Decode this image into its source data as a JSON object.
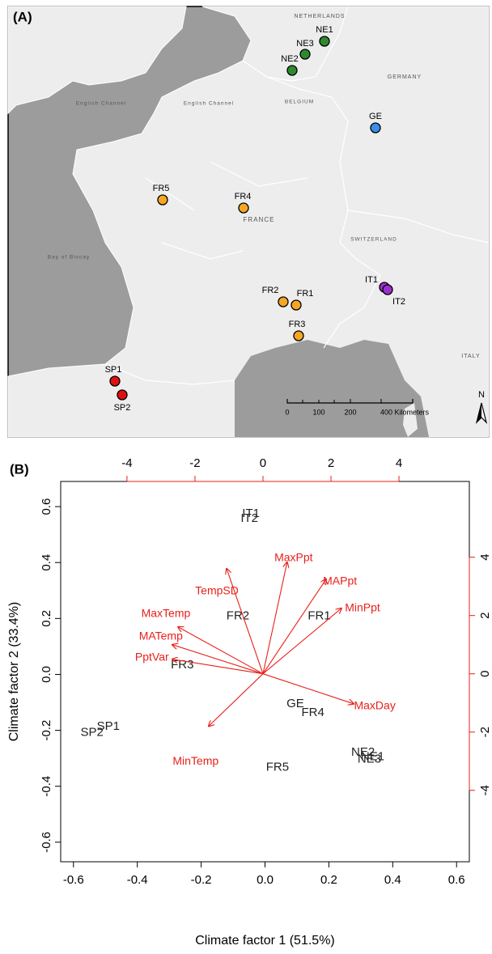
{
  "panel_a": {
    "label": "(A)",
    "sites": [
      {
        "name": "NE1",
        "color": "#2f8a2f"
      },
      {
        "name": "NE3",
        "color": "#2f8a2f"
      },
      {
        "name": "NE2",
        "color": "#2f8a2f"
      },
      {
        "name": "GE",
        "color": "#3b8ee8"
      },
      {
        "name": "FR5",
        "color": "#f5a623"
      },
      {
        "name": "FR4",
        "color": "#f5a623"
      },
      {
        "name": "FR2",
        "color": "#f5a623"
      },
      {
        "name": "FR1",
        "color": "#f5a623"
      },
      {
        "name": "FR3",
        "color": "#f5a623"
      },
      {
        "name": "IT1",
        "color": "#9b30d0"
      },
      {
        "name": "IT2",
        "color": "#9b30d0"
      },
      {
        "name": "SP1",
        "color": "#e01010"
      },
      {
        "name": "SP2",
        "color": "#e01010"
      }
    ],
    "place_names": [
      "NETHERLANDS",
      "GERMANY",
      "BELGIUM",
      "English Channel",
      "English Channel",
      "FRANCE",
      "SWITZERLAND",
      "Bay of Biscay",
      "ITALY"
    ],
    "scale_bar": [
      "0",
      "100",
      "200",
      "400 Kilometers"
    ],
    "north": "N"
  },
  "chart_data": {
    "type": "biplot",
    "panel_label": "(B)",
    "xlabel": "Climate factor 1 (51.5%)",
    "ylabel": "Climate factor 2 (33.4%)",
    "xlim": [
      -0.64,
      0.64
    ],
    "ylim": [
      -0.67,
      0.69
    ],
    "xticks": [
      -0.6,
      -0.4,
      -0.2,
      {
        "value": 0,
        "label": "0.0"
      },
      0.2,
      0.4,
      0.6
    ],
    "yticks": [
      -0.6,
      -0.4,
      -0.2,
      {
        "value": 0,
        "label": "0.0"
      },
      0.2,
      0.4,
      0.6
    ],
    "x2lim": [
      -5.95,
      6.07
    ],
    "y2lim": [
      -6.45,
      6.6
    ],
    "x2ticks": [
      -4,
      -2,
      0,
      2,
      4
    ],
    "y2ticks": [
      -4,
      -2,
      0,
      2,
      4
    ],
    "points": {
      "color": "#222222",
      "labels": [
        "IT1",
        "IT2",
        "FR2",
        "FR1",
        "FR3",
        "GE",
        "FR4",
        "FR5",
        "NE2",
        "NE3",
        "NE1",
        "SP1",
        "SP2"
      ],
      "x": [
        -0.044,
        -0.049,
        -0.085,
        0.17,
        -0.259,
        0.095,
        0.15,
        0.039,
        0.307,
        0.327,
        0.337,
        -0.491,
        -0.542
      ],
      "y": [
        0.574,
        0.557,
        0.208,
        0.208,
        0.033,
        -0.106,
        -0.138,
        -0.333,
        -0.28,
        -0.304,
        -0.295,
        -0.187,
        -0.208
      ]
    },
    "loadings": {
      "color": "#e8201a",
      "labels": [
        "TempSD",
        "MaxPpt",
        "MAPpt",
        "MinPpt",
        "MaxTemp",
        "MATemp",
        "PptVar",
        "MaxDay",
        "MinTemp"
      ],
      "x": [
        -1.07,
        0.71,
        1.86,
        2.31,
        -2.5,
        -2.67,
        -2.67,
        2.67,
        -1.6
      ],
      "y": [
        3.61,
        3.83,
        3.25,
        2.25,
        1.61,
        1.0,
        0.5,
        -1.03,
        -1.8
      ]
    }
  }
}
